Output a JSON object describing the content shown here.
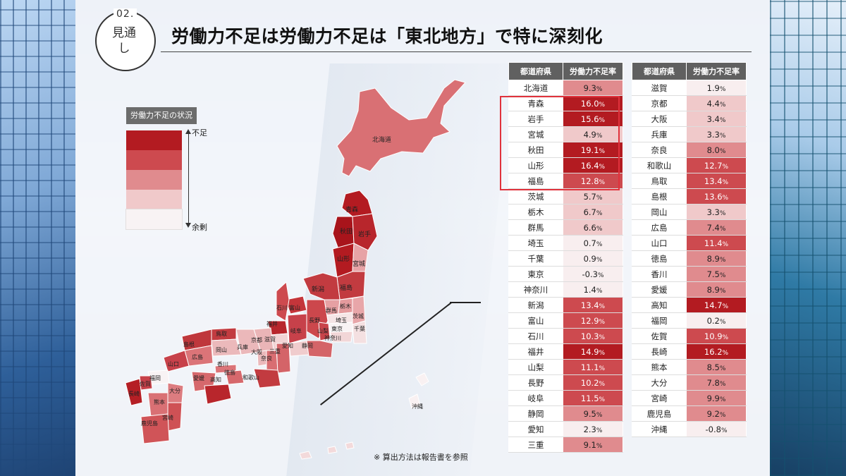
{
  "header": {
    "badge_number": "02.",
    "badge_label": "見通\nし",
    "title": "労働力不足は労働力不足は「東北地方」で特に深刻化"
  },
  "legend": {
    "title": "労働力不足の状況",
    "top_label": "不足",
    "bottom_label": "余剰",
    "colors": [
      "#b31b21",
      "#cd4a4f",
      "#e08b8e",
      "#f0c9ca",
      "#f8f3f4"
    ]
  },
  "map_labels": {
    "hokkaido": "北海道",
    "aomori": "青森",
    "akita": "秋田",
    "iwate": "岩手",
    "yamagata": "山形",
    "miyagi": "宮城",
    "niigata": "新潟",
    "fukushima": "福島",
    "ishikawa": "石川",
    "toyama": "富山",
    "nagano": "長野",
    "gunma": "群馬",
    "tochigi": "栃木",
    "ibaraki": "茨城",
    "fukui": "福井",
    "gifu": "岐阜",
    "yamanashi": "山梨",
    "saitama": "埼玉",
    "tokyo": "東京",
    "chiba": "千葉",
    "kanagawa": "神奈川",
    "shiga": "滋賀",
    "kyoto": "京都",
    "aichi": "愛知",
    "shizuoka": "静岡",
    "hyogo": "兵庫",
    "osaka": "大阪",
    "nara": "奈良",
    "mie": "三重",
    "wakayama": "和歌山",
    "tottori": "鳥取",
    "shimane": "島根",
    "okayama": "岡山",
    "hiroshima": "広島",
    "yamaguchi": "山口",
    "kagawa": "香川",
    "tokushima": "徳島",
    "ehime": "愛媛",
    "kochi": "高知",
    "fukuoka": "福岡",
    "saga": "佐賀",
    "nagasaki": "長崎",
    "oita": "大分",
    "kumamoto": "熊本",
    "miyazaki": "宮崎",
    "kagoshima": "鹿児島",
    "okinawa": "沖縄"
  },
  "note": "※ 算出方法は報告書を参照",
  "table": {
    "header_pref": "都道府県",
    "header_rate": "労働力不足率",
    "left": [
      {
        "pref": "北海道",
        "rate": 9.3
      },
      {
        "pref": "青森",
        "rate": 16.0
      },
      {
        "pref": "岩手",
        "rate": 15.6
      },
      {
        "pref": "宮城",
        "rate": 4.9
      },
      {
        "pref": "秋田",
        "rate": 19.1
      },
      {
        "pref": "山形",
        "rate": 16.4
      },
      {
        "pref": "福島",
        "rate": 12.8
      },
      {
        "pref": "茨城",
        "rate": 5.7
      },
      {
        "pref": "栃木",
        "rate": 6.7
      },
      {
        "pref": "群馬",
        "rate": 6.6
      },
      {
        "pref": "埼玉",
        "rate": 0.7
      },
      {
        "pref": "千葉",
        "rate": 0.9
      },
      {
        "pref": "東京",
        "rate": -0.3
      },
      {
        "pref": "神奈川",
        "rate": 1.4
      },
      {
        "pref": "新潟",
        "rate": 13.4
      },
      {
        "pref": "富山",
        "rate": 12.9
      },
      {
        "pref": "石川",
        "rate": 10.3
      },
      {
        "pref": "福井",
        "rate": 14.9
      },
      {
        "pref": "山梨",
        "rate": 11.1
      },
      {
        "pref": "長野",
        "rate": 10.2
      },
      {
        "pref": "岐阜",
        "rate": 11.5
      },
      {
        "pref": "静岡",
        "rate": 9.5
      },
      {
        "pref": "愛知",
        "rate": 2.3
      },
      {
        "pref": "三重",
        "rate": 9.1
      }
    ],
    "right": [
      {
        "pref": "滋賀",
        "rate": 1.9
      },
      {
        "pref": "京都",
        "rate": 4.4
      },
      {
        "pref": "大阪",
        "rate": 3.4
      },
      {
        "pref": "兵庫",
        "rate": 3.3
      },
      {
        "pref": "奈良",
        "rate": 8.0
      },
      {
        "pref": "和歌山",
        "rate": 12.7
      },
      {
        "pref": "鳥取",
        "rate": 13.4
      },
      {
        "pref": "島根",
        "rate": 13.6
      },
      {
        "pref": "岡山",
        "rate": 3.3
      },
      {
        "pref": "広島",
        "rate": 7.4
      },
      {
        "pref": "山口",
        "rate": 11.4
      },
      {
        "pref": "徳島",
        "rate": 8.9
      },
      {
        "pref": "香川",
        "rate": 7.5
      },
      {
        "pref": "愛媛",
        "rate": 8.9
      },
      {
        "pref": "高知",
        "rate": 14.7
      },
      {
        "pref": "福岡",
        "rate": 0.2
      },
      {
        "pref": "佐賀",
        "rate": 10.9
      },
      {
        "pref": "長崎",
        "rate": 16.2
      },
      {
        "pref": "熊本",
        "rate": 8.5
      },
      {
        "pref": "大分",
        "rate": 7.8
      },
      {
        "pref": "宮崎",
        "rate": 9.9
      },
      {
        "pref": "鹿児島",
        "rate": 9.2
      },
      {
        "pref": "沖縄",
        "rate": -0.8
      }
    ],
    "percent_sign": "%"
  }
}
